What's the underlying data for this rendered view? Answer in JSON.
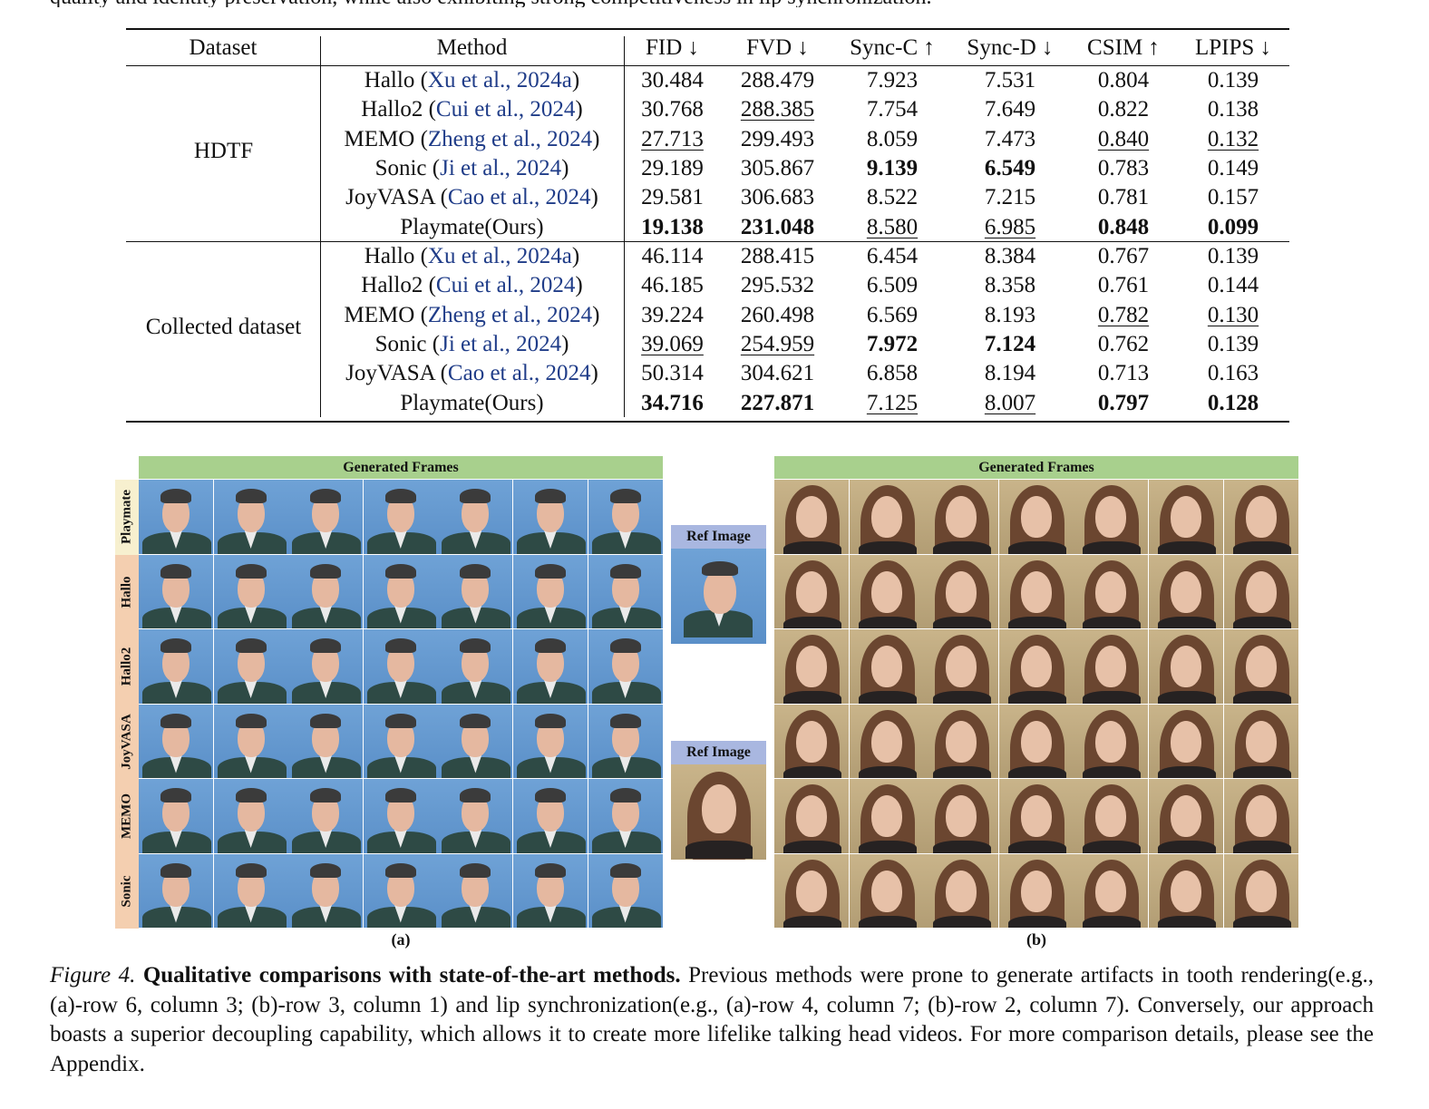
{
  "top_text": "quality and identity preservation, while also exhibiting strong competitiveness in lip synchronization.",
  "table": {
    "headers": [
      "Dataset",
      "Method",
      "FID ↓",
      "FVD ↓",
      "Sync-C ↑",
      "Sync-D ↓",
      "CSIM ↑",
      "LPIPS ↓"
    ],
    "groups": [
      {
        "dataset": "HDTF",
        "rows": [
          {
            "name": "Hallo (",
            "cite": "Xu et al., 2024a",
            "close": ")",
            "fid": "30.484",
            "fvd": "288.479",
            "syncc": "7.923",
            "syncd": "7.531",
            "csim": "0.804",
            "lpips": "0.139"
          },
          {
            "name": "Hallo2 (",
            "cite": "Cui et al., 2024",
            "close": ")",
            "fid": "30.768",
            "fvd": "288.385",
            "syncc": "7.754",
            "syncd": "7.649",
            "csim": "0.822",
            "lpips": "0.138"
          },
          {
            "name": "MEMO (",
            "cite": "Zheng et al., 2024",
            "close": ")",
            "fid": "27.713",
            "fvd": "299.493",
            "syncc": "8.059",
            "syncd": "7.473",
            "csim": "0.840",
            "lpips": "0.132"
          },
          {
            "name": "Sonic (",
            "cite": "Ji et al., 2024",
            "close": ")",
            "fid": "29.189",
            "fvd": "305.867",
            "syncc": "9.139",
            "syncd": "6.549",
            "csim": "0.783",
            "lpips": "0.149"
          },
          {
            "name": "JoyVASA (",
            "cite": "Cao et al., 2024",
            "close": ")",
            "fid": "29.581",
            "fvd": "306.683",
            "syncc": "8.522",
            "syncd": "7.215",
            "csim": "0.781",
            "lpips": "0.157"
          },
          {
            "name": "Playmate(Ours)",
            "cite": "",
            "close": "",
            "fid": "19.138",
            "fvd": "231.048",
            "syncc": "8.580",
            "syncd": "6.985",
            "csim": "0.848",
            "lpips": "0.099"
          }
        ]
      },
      {
        "dataset": "Collected dataset",
        "rows": [
          {
            "name": "Hallo (",
            "cite": "Xu et al., 2024a",
            "close": ")",
            "fid": "46.114",
            "fvd": "288.415",
            "syncc": "6.454",
            "syncd": "8.384",
            "csim": "0.767",
            "lpips": "0.139"
          },
          {
            "name": "Hallo2 (",
            "cite": "Cui et al., 2024",
            "close": ")",
            "fid": "46.185",
            "fvd": "295.532",
            "syncc": "6.509",
            "syncd": "8.358",
            "csim": "0.761",
            "lpips": "0.144"
          },
          {
            "name": "MEMO (",
            "cite": "Zheng et al., 2024",
            "close": ")",
            "fid": "39.224",
            "fvd": "260.498",
            "syncc": "6.569",
            "syncd": "8.193",
            "csim": "0.782",
            "lpips": "0.130"
          },
          {
            "name": "Sonic (",
            "cite": "Ji et al., 2024",
            "close": ")",
            "fid": "39.069",
            "fvd": "254.959",
            "syncc": "7.972",
            "syncd": "7.124",
            "csim": "0.762",
            "lpips": "0.139"
          },
          {
            "name": "JoyVASA (",
            "cite": "Cao et al., 2024",
            "close": ")",
            "fid": "50.314",
            "fvd": "304.621",
            "syncc": "6.858",
            "syncd": "8.194",
            "csim": "0.713",
            "lpips": "0.163"
          },
          {
            "name": "Playmate(Ours)",
            "cite": "",
            "close": "",
            "fid": "34.716",
            "fvd": "227.871",
            "syncc": "7.125",
            "syncd": "8.007",
            "csim": "0.797",
            "lpips": "0.128"
          }
        ]
      }
    ]
  },
  "figure": {
    "generated_frames_label": "Generated Frames",
    "ref_image_label": "Ref Image",
    "row_labels": [
      "Playmate",
      "Hallo",
      "Hallo2",
      "JoyVASA",
      "MEMO",
      "Sonic"
    ],
    "sub_a": "(a)",
    "sub_b": "(b)"
  },
  "caption": {
    "fig_label": "Figure 4.",
    "title": "Qualitative comparisons with state-of-the-art methods.",
    "body": "Previous methods were prone to generate artifacts in tooth rendering(e.g., (a)-row 6, column 3; (b)-row 3, column 1) and lip synchronization(e.g., (a)-row 4, column 7; (b)-row 2, column 7). Conversely, our approach boasts a superior decoupling capability, which allows it to create more lifelike talking head videos. For more comparison details, please see the Appendix."
  }
}
